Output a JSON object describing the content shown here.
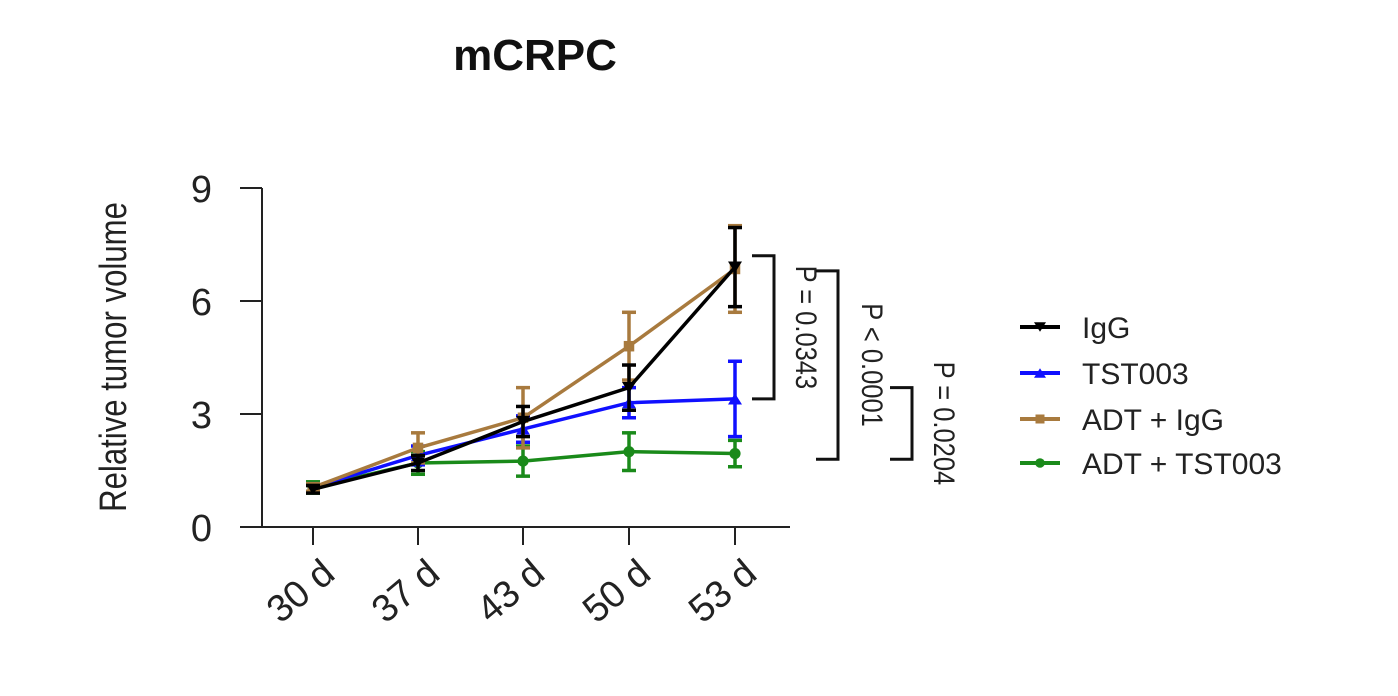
{
  "chart_data": {
    "type": "line",
    "title": "mCRPC",
    "xlabel": "",
    "ylabel": "Relative tumor volume",
    "categories": [
      "30 d",
      "37 d",
      "43 d",
      "50 d",
      "53 d"
    ],
    "ylim": [
      0,
      9
    ],
    "yticks": [
      0,
      3,
      6,
      9
    ],
    "ytick_labels": [
      "0",
      "3",
      "6",
      "9"
    ],
    "series": [
      {
        "name": "IgG",
        "color": "#000000",
        "marker": "triangle-down",
        "values": [
          1.0,
          1.7,
          2.8,
          3.7,
          6.9
        ],
        "err": [
          0.1,
          0.2,
          0.4,
          0.6,
          1.05
        ]
      },
      {
        "name": "TST003",
        "color": "#1010ff",
        "marker": "triangle-up",
        "values": [
          1.05,
          1.9,
          2.6,
          3.3,
          3.4
        ],
        "err": [
          0.1,
          0.25,
          0.35,
          0.4,
          1.0
        ]
      },
      {
        "name": "ADT + IgG",
        "color": "#a87a3e",
        "marker": "square",
        "values": [
          1.05,
          2.1,
          2.9,
          4.8,
          6.85
        ],
        "err": [
          0.1,
          0.4,
          0.8,
          0.9,
          1.15
        ]
      },
      {
        "name": "ADT +  TST003",
        "color": "#1a8a1a",
        "marker": "circle",
        "values": [
          1.05,
          1.7,
          1.75,
          2.0,
          1.95
        ],
        "err": [
          0.15,
          0.3,
          0.4,
          0.5,
          0.35
        ]
      }
    ],
    "annotations": [
      {
        "label": "P = 0.0343",
        "from": 7.2,
        "to": 3.4
      },
      {
        "label": "P < 0.0001",
        "from": 6.8,
        "to": 1.8
      },
      {
        "label": "P = 0.0204",
        "from": 3.7,
        "to": 1.8
      }
    ],
    "legend_position": "right"
  }
}
